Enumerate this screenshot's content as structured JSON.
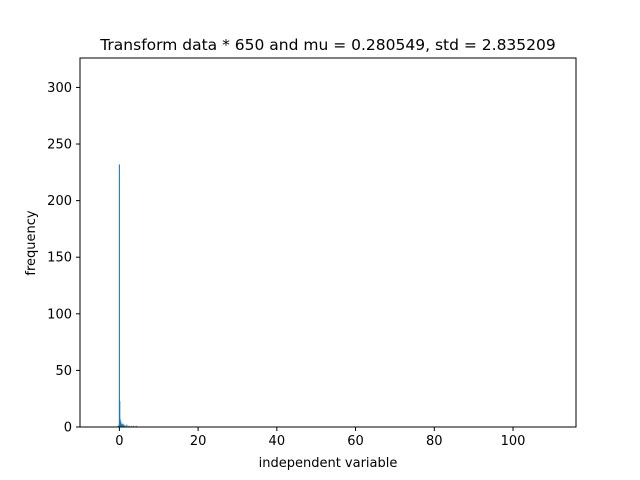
{
  "chart_data": {
    "type": "bar",
    "title": "Transform data * 650 and mu = 0.280549,  std = 2.835209",
    "xlabel": "independent variable",
    "ylabel": "frequency",
    "xlim": [
      -10,
      116
    ],
    "ylim": [
      0,
      326
    ],
    "xticks": [
      0,
      20,
      40,
      60,
      80,
      100
    ],
    "yticks": [
      0,
      50,
      100,
      150,
      200,
      250,
      300
    ],
    "grid": false,
    "bar_color": "#1f77b4",
    "bars": [
      {
        "x": -0.3,
        "value": 1
      },
      {
        "x": -0.05,
        "value": 2
      },
      {
        "x": 0.0,
        "value": 232
      },
      {
        "x": 0.1,
        "value": 23
      },
      {
        "x": 0.2,
        "value": 7
      },
      {
        "x": 0.35,
        "value": 5
      },
      {
        "x": 0.5,
        "value": 3
      },
      {
        "x": 0.7,
        "value": 2
      },
      {
        "x": 0.9,
        "value": 3
      },
      {
        "x": 1.2,
        "value": 2
      },
      {
        "x": 1.5,
        "value": 1
      },
      {
        "x": 1.9,
        "value": 2
      },
      {
        "x": 2.4,
        "value": 1
      },
      {
        "x": 3.0,
        "value": 1
      },
      {
        "x": 3.6,
        "value": 1
      },
      {
        "x": 4.3,
        "value": 1
      }
    ]
  }
}
